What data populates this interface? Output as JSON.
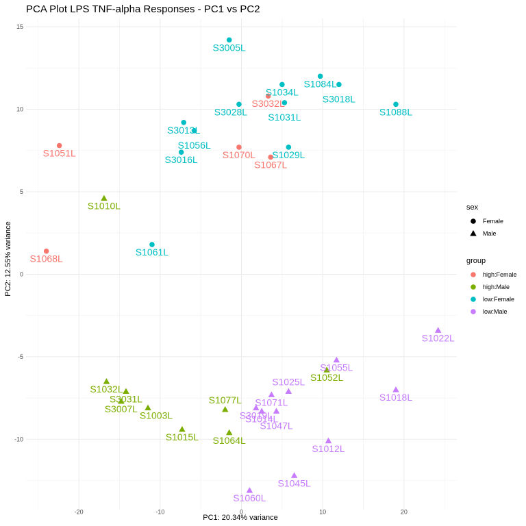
{
  "chart_data": {
    "type": "scatter",
    "title": "PCA Plot LPS TNF-alpha Responses - PC1 vs PC2",
    "xlabel": "PC1: 20.34% variance",
    "ylabel": "PC2: 12.55% variance",
    "xlim": [
      -26.5,
      26.5
    ],
    "ylim": [
      -14.3,
      15.5
    ],
    "x_ticks": [
      -20,
      -10,
      0,
      10,
      20
    ],
    "y_ticks": [
      -10,
      -5,
      0,
      5,
      10,
      15
    ],
    "x_tick_labels": [
      "-20",
      "-10",
      "0",
      "10",
      "20"
    ],
    "y_tick_labels": [
      "-10",
      "-5",
      "0",
      "5",
      "10",
      "15"
    ],
    "grid": true,
    "legend_placement": "right",
    "sex_legend": {
      "title": "sex",
      "entries": [
        {
          "label": "Female",
          "shape": "circle"
        },
        {
          "label": "Male",
          "shape": "triangle"
        }
      ]
    },
    "group_legend": {
      "title": "group",
      "entries": [
        {
          "label": "high:Female",
          "color": "#F8766D"
        },
        {
          "label": "high:Male",
          "color": "#7CAE00"
        },
        {
          "label": "low:Female",
          "color": "#00BFC4"
        },
        {
          "label": "low:Male",
          "color": "#C77CFF"
        }
      ]
    },
    "points": [
      {
        "label": "S3005L",
        "x": -1.5,
        "y": 14.2,
        "group": "low:Female",
        "sex": "Female"
      },
      {
        "label": "S1034L",
        "x": 5.0,
        "y": 11.5,
        "group": "low:Female",
        "sex": "Female"
      },
      {
        "label": "S1084L",
        "x": 9.7,
        "y": 12.0,
        "group": "low:Female",
        "sex": "Female"
      },
      {
        "label": "S3018L",
        "x": 12.0,
        "y": 11.5,
        "group": "low:Female",
        "sex": "Female"
      },
      {
        "label": "S3032L",
        "x": 3.3,
        "y": 10.8,
        "group": "high:Female",
        "sex": "Female"
      },
      {
        "label": "S3028L",
        "x": -0.3,
        "y": 10.3,
        "group": "low:Female",
        "sex": "Female"
      },
      {
        "label": "S1031L",
        "x": 5.3,
        "y": 10.4,
        "group": "low:Female",
        "sex": "Female"
      },
      {
        "label": "S1088L",
        "x": 19.0,
        "y": 10.3,
        "group": "low:Female",
        "sex": "Female"
      },
      {
        "label": "S3013L",
        "x": -7.1,
        "y": 9.2,
        "group": "low:Female",
        "sex": "Female"
      },
      {
        "label": "S1056L",
        "x": -5.8,
        "y": 8.7,
        "group": "low:Female",
        "sex": "Female"
      },
      {
        "label": "S3016L",
        "x": -7.4,
        "y": 7.4,
        "group": "low:Female",
        "sex": "Female"
      },
      {
        "label": "S1070L",
        "x": -0.3,
        "y": 7.7,
        "group": "high:Female",
        "sex": "Female"
      },
      {
        "label": "S1029L",
        "x": 5.8,
        "y": 7.7,
        "group": "low:Female",
        "sex": "Female"
      },
      {
        "label": "S1067L",
        "x": 3.6,
        "y": 7.1,
        "group": "high:Female",
        "sex": "Female"
      },
      {
        "label": "S1051L",
        "x": -22.4,
        "y": 7.8,
        "group": "high:Female",
        "sex": "Female"
      },
      {
        "label": "S1010L",
        "x": -16.9,
        "y": 4.6,
        "group": "high:Male",
        "sex": "Male"
      },
      {
        "label": "S1068L",
        "x": -24.0,
        "y": 1.4,
        "group": "high:Female",
        "sex": "Female"
      },
      {
        "label": "S1061L",
        "x": -11.0,
        "y": 1.8,
        "group": "low:Female",
        "sex": "Female"
      },
      {
        "label": "S1022L",
        "x": 24.2,
        "y": -3.4,
        "group": "low:Male",
        "sex": "Male"
      },
      {
        "label": "S1055L",
        "x": 11.7,
        "y": -5.2,
        "group": "low:Male",
        "sex": "Male"
      },
      {
        "label": "S1052L",
        "x": 10.5,
        "y": -5.8,
        "group": "high:Male",
        "sex": "Male"
      },
      {
        "label": "S1032L",
        "x": -16.6,
        "y": -6.5,
        "group": "high:Male",
        "sex": "Male"
      },
      {
        "label": "S3031L",
        "x": -14.2,
        "y": -7.1,
        "group": "high:Male",
        "sex": "Male"
      },
      {
        "label": "S1071L",
        "x": 3.7,
        "y": -7.3,
        "group": "low:Male",
        "sex": "Male"
      },
      {
        "label": "S1025L",
        "x": 5.8,
        "y": -7.1,
        "group": "low:Male",
        "sex": "Male"
      },
      {
        "label": "S1018L",
        "x": 19.0,
        "y": -7.0,
        "group": "low:Male",
        "sex": "Male"
      },
      {
        "label": "S3007L",
        "x": -14.8,
        "y": -7.7,
        "group": "high:Male",
        "sex": "Male"
      },
      {
        "label": "S3019L",
        "x": 1.8,
        "y": -8.1,
        "group": "low:Male",
        "sex": "Male"
      },
      {
        "label": "S1047L",
        "x": 4.3,
        "y": -8.3,
        "group": "low:Male",
        "sex": "Male"
      },
      {
        "label": "S1003L",
        "x": -11.5,
        "y": -8.1,
        "group": "high:Male",
        "sex": "Male"
      },
      {
        "label": "S1077L",
        "x": -2.0,
        "y": -8.2,
        "group": "high:Male",
        "sex": "Male"
      },
      {
        "label": "S1014L",
        "x": 2.5,
        "y": -8.3,
        "group": "low:Male",
        "sex": "Male"
      },
      {
        "label": "S1015L",
        "x": -7.3,
        "y": -9.4,
        "group": "high:Male",
        "sex": "Male"
      },
      {
        "label": "S1064L",
        "x": -1.5,
        "y": -9.6,
        "group": "high:Male",
        "sex": "Male"
      },
      {
        "label": "S1012L",
        "x": 10.7,
        "y": -10.1,
        "group": "low:Male",
        "sex": "Male"
      },
      {
        "label": "S1045L",
        "x": 6.5,
        "y": -12.2,
        "group": "low:Male",
        "sex": "Male"
      },
      {
        "label": "S1060L",
        "x": 1.0,
        "y": -13.1,
        "group": "low:Male",
        "sex": "Male"
      }
    ]
  }
}
